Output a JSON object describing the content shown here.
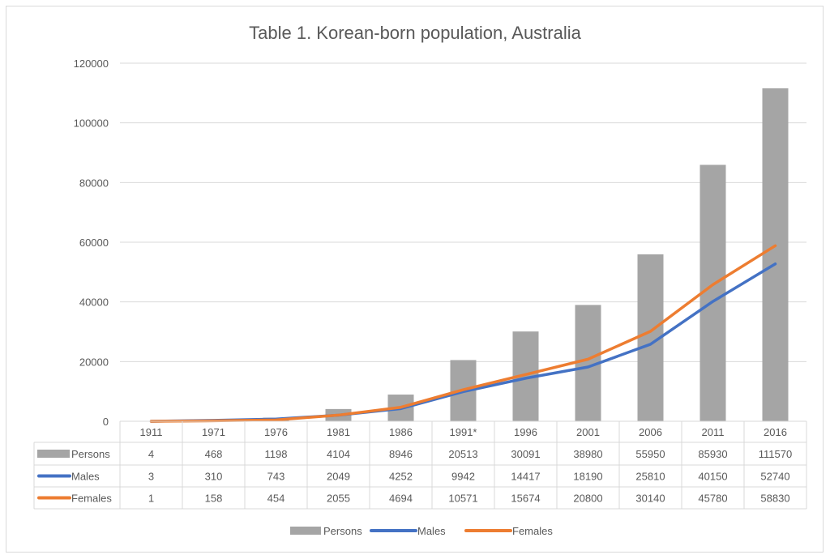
{
  "chart_data": {
    "type": "bar+line",
    "title": "Table 1. Korean-born population, Australia",
    "categories": [
      "1911",
      "1971",
      "1976",
      "1981",
      "1986",
      "1991*",
      "1996",
      "2001",
      "2006",
      "2011",
      "2016"
    ],
    "series": [
      {
        "name": "Persons",
        "kind": "bar",
        "color": "#a5a5a5",
        "values": [
          4,
          468,
          1198,
          4104,
          8946,
          20513,
          30091,
          38980,
          55950,
          85930,
          111570
        ]
      },
      {
        "name": "Males",
        "kind": "line",
        "color": "#4472c4",
        "values": [
          3,
          310,
          743,
          2049,
          4252,
          9942,
          14417,
          18190,
          25810,
          40150,
          52740
        ]
      },
      {
        "name": "Females",
        "kind": "line",
        "color": "#ed7d31",
        "values": [
          1,
          158,
          454,
          2055,
          4694,
          10571,
          15674,
          20800,
          30140,
          45780,
          58830
        ]
      }
    ],
    "yticks": [
      "0",
      "20000",
      "40000",
      "60000",
      "80000",
      "100000",
      "120000"
    ],
    "ylim": [
      0,
      120000
    ],
    "grid": true,
    "data_table": true,
    "legend": "bottom"
  }
}
